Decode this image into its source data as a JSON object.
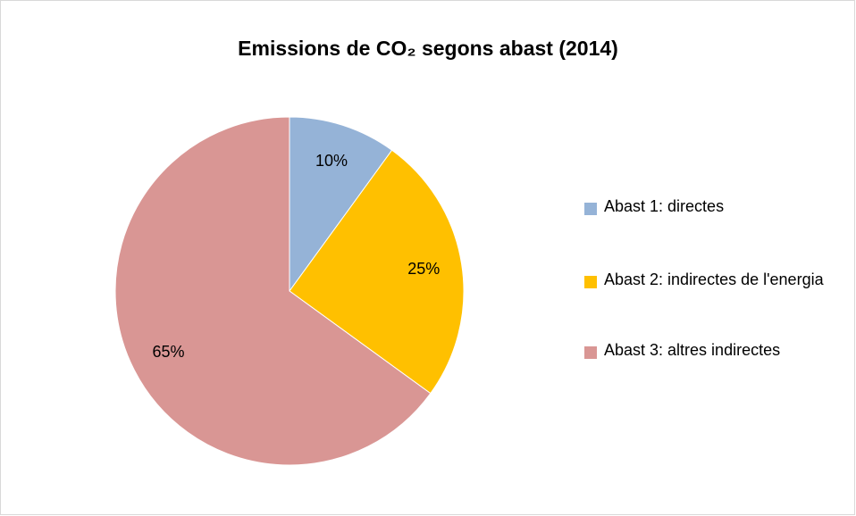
{
  "chart_data": {
    "type": "pie",
    "title": "Emissions de CO₂ segons abast (2014)",
    "categories": [
      "Abast 1: directes",
      "Abast 2: indirectes de l'energia",
      "Abast 3: altres indirectes"
    ],
    "values": [
      10,
      25,
      65
    ],
    "value_labels": [
      "10%",
      "25%",
      "65%"
    ],
    "colors": [
      "#95b3d7",
      "#ffc000",
      "#d99694"
    ],
    "legend": "right"
  }
}
